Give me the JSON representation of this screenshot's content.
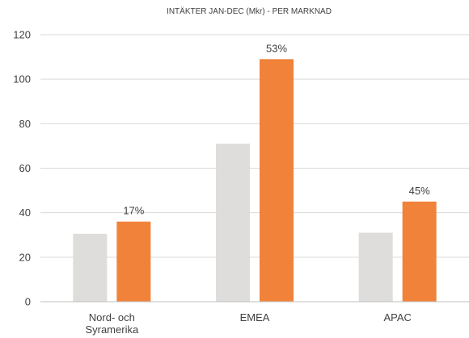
{
  "chart_data": {
    "type": "bar",
    "title": "INTÄKTER  JAN-DEC  (Mkr) - PER MARKNAD",
    "categories": [
      [
        "Nord- och",
        "Syramerika"
      ],
      [
        "EMEA"
      ],
      [
        "APAC"
      ]
    ],
    "ylim": [
      0,
      120
    ],
    "yticks": [
      0,
      20,
      40,
      60,
      80,
      100,
      120
    ],
    "grid": true,
    "legend": "none",
    "series": [
      {
        "values": [
          30.5,
          71,
          31
        ],
        "color": "#dedddb"
      },
      {
        "values": [
          36,
          109,
          45
        ],
        "color": "#f0823a",
        "data_labels": [
          "17%",
          "53%",
          "45%"
        ]
      }
    ]
  }
}
